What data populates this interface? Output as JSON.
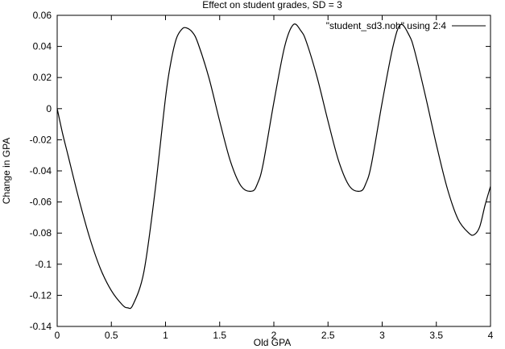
{
  "chart_data": {
    "type": "line",
    "title": "Effect on student grades, SD = 3",
    "xlabel": "Old GPA",
    "ylabel": "Change in GPA",
    "xlim": [
      0,
      4
    ],
    "ylim": [
      -0.14,
      0.06
    ],
    "x_ticks": [
      "0",
      "0.5",
      "1",
      "1.5",
      "2",
      "2.5",
      "3",
      "3.5",
      "4"
    ],
    "y_ticks": [
      "0.06",
      "0.04",
      "0.02",
      "0",
      "-0.02",
      "-0.04",
      "-0.06",
      "-0.08",
      "-0.1",
      "-0.12",
      "-0.14"
    ],
    "grid": false,
    "legend_position": "top-right",
    "series": [
      {
        "name": "\"student_sd3.noh\" using 2:4",
        "color": "#000000",
        "x": [
          0.0,
          0.05,
          0.1,
          0.2,
          0.3,
          0.4,
          0.5,
          0.6,
          0.65,
          0.7,
          0.8,
          0.9,
          1.0,
          1.05,
          1.1,
          1.15,
          1.19,
          1.25,
          1.3,
          1.4,
          1.5,
          1.6,
          1.7,
          1.8,
          1.85,
          1.9,
          2.0,
          2.1,
          2.18,
          2.25,
          2.3,
          2.4,
          2.5,
          2.6,
          2.7,
          2.8,
          2.85,
          2.9,
          3.0,
          3.1,
          3.17,
          3.25,
          3.3,
          3.4,
          3.5,
          3.6,
          3.7,
          3.8,
          3.85,
          3.9,
          3.95,
          4.0
        ],
        "y": [
          0.0,
          -0.016,
          -0.03,
          -0.058,
          -0.083,
          -0.103,
          -0.117,
          -0.126,
          -0.128,
          -0.126,
          -0.105,
          -0.055,
          0.007,
          0.03,
          0.045,
          0.051,
          0.052,
          0.049,
          0.042,
          0.02,
          -0.008,
          -0.034,
          -0.05,
          -0.053,
          -0.048,
          -0.036,
          0.004,
          0.04,
          0.054,
          0.05,
          0.043,
          0.02,
          -0.008,
          -0.034,
          -0.05,
          -0.053,
          -0.048,
          -0.036,
          0.004,
          0.04,
          0.054,
          0.047,
          0.037,
          0.008,
          -0.023,
          -0.051,
          -0.071,
          -0.08,
          -0.081,
          -0.076,
          -0.062,
          -0.05
        ]
      }
    ]
  }
}
